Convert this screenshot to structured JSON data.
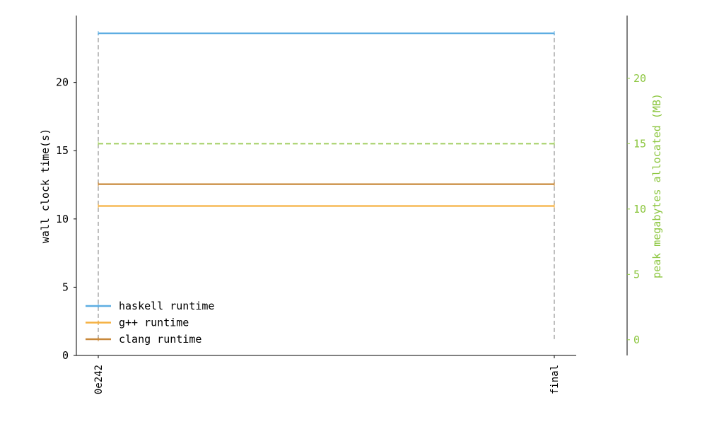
{
  "chart_data": {
    "type": "line",
    "x": [
      "0e242",
      "final"
    ],
    "y_left": {
      "label": "wall clock time(s)",
      "lim": [
        0,
        24.9
      ],
      "ticks": [
        0,
        5,
        10,
        15,
        20
      ],
      "tick_labels": [
        "0",
        "5",
        "10",
        "15",
        "20"
      ],
      "color": "#000000"
    },
    "y_right": {
      "label": "peak megabytes allocated (MB)",
      "lim": [
        -1.2,
        24.8
      ],
      "ticks": [
        0,
        5,
        10,
        15,
        20
      ],
      "tick_labels": [
        "0",
        "5",
        "10",
        "15",
        "20"
      ],
      "color": "#8cc63f"
    },
    "series": [
      {
        "name": "haskell runtime",
        "axis": "left",
        "values": [
          23.6,
          23.6
        ],
        "color": "#5dade2",
        "style": "solid",
        "in_legend": true
      },
      {
        "name": "g++ runtime",
        "axis": "left",
        "values": [
          10.95,
          10.95
        ],
        "color": "#f5b041",
        "style": "solid",
        "in_legend": true
      },
      {
        "name": "clang runtime",
        "axis": "left",
        "values": [
          12.55,
          12.55
        ],
        "color": "#c8883a",
        "style": "solid",
        "in_legend": true
      },
      {
        "axis": "right",
        "values": [
          15.0,
          15.0
        ],
        "color": "#a6d16a",
        "style": "dashed",
        "in_legend": false
      }
    ],
    "vertical_markers": {
      "x": [
        "0e242",
        "final"
      ],
      "from_left": 1.2,
      "to_left": 23.6,
      "color": "#a9a9a9",
      "style": "dashed"
    },
    "legend": {
      "placement": "lower-left"
    },
    "grid": false
  }
}
